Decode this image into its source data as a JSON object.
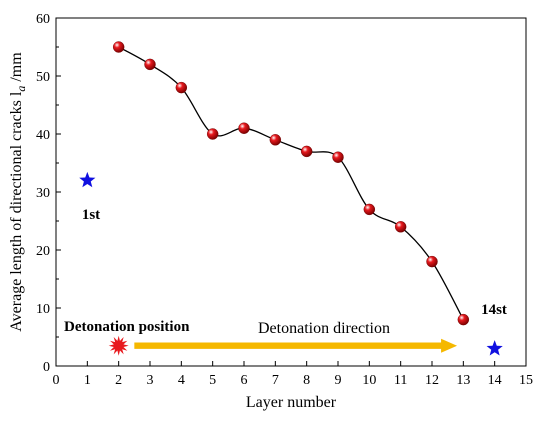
{
  "chart_data": {
    "type": "scatter",
    "xlabel": "Layer number",
    "ylabel": "Average length of directional cracks l",
    "ylabel_sub": "a",
    "ylabel_unit": " /mm",
    "xlim": [
      0,
      15
    ],
    "ylim": [
      0,
      60
    ],
    "xticks": [
      0,
      1,
      2,
      3,
      4,
      5,
      6,
      7,
      8,
      9,
      10,
      11,
      12,
      13,
      14,
      15
    ],
    "yticks": [
      0,
      10,
      20,
      30,
      40,
      50,
      60
    ],
    "grid": false,
    "series": [
      {
        "marker": "sphere",
        "color": "#e8191e",
        "smooth_line": true,
        "x": [
          2,
          3,
          4,
          5,
          6,
          7,
          8,
          9,
          10,
          11,
          12,
          13
        ],
        "y": [
          55,
          52,
          48,
          40,
          41,
          39,
          37,
          36,
          27,
          24,
          18,
          8
        ]
      }
    ],
    "markers": [
      {
        "label": "1st",
        "x": 1,
        "y": 32,
        "shape": "star",
        "color": "#1010e0"
      },
      {
        "label": "14st",
        "x": 14,
        "y": 3,
        "shape": "star",
        "color": "#1010e0"
      }
    ],
    "annotations": {
      "detonation_position": "Detonation position",
      "detonation_direction": "Detonation direction",
      "arrow_from_x": 2.5,
      "arrow_to_x": 12.8,
      "arrow_y": 3.5,
      "burst_x": 2,
      "burst_y": 3.5,
      "arrow_color": "#f5b800",
      "burst_color": "#e8191e"
    }
  }
}
